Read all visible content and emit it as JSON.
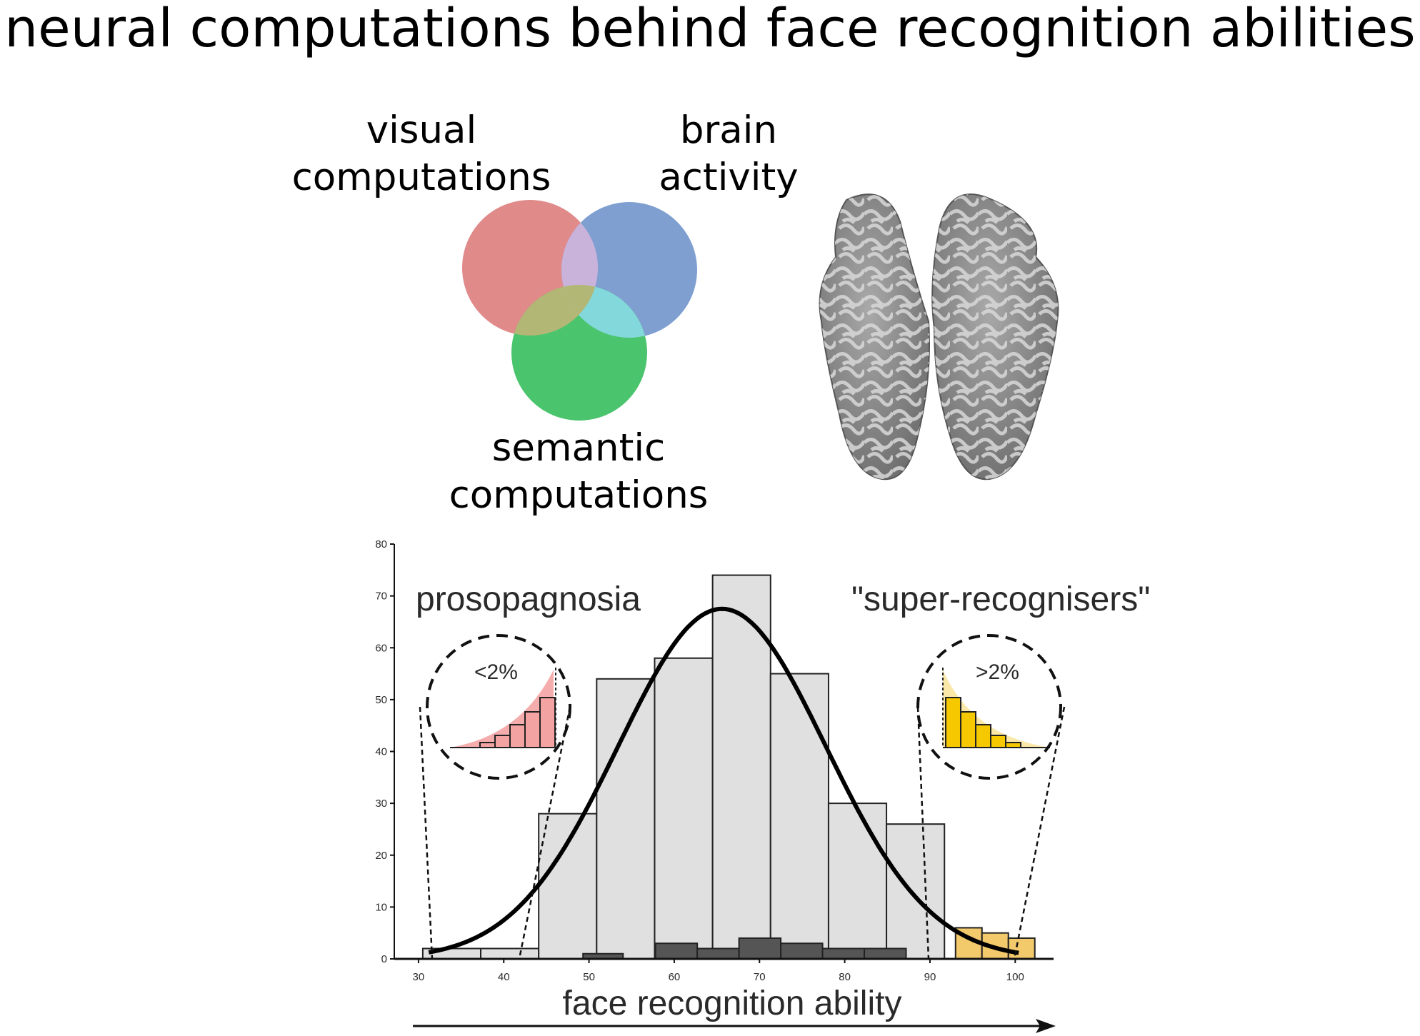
{
  "title": "neural computations behind face recognition abilities",
  "venn": {
    "labels": {
      "visual": [
        "visual",
        "computations"
      ],
      "brain": [
        "brain",
        "activity"
      ],
      "semantic": [
        "semantic",
        "computations"
      ]
    },
    "colors": {
      "visual": "#e08a8a",
      "brain": "#7f9fd1",
      "semantic": "#4bc46e",
      "visual_brain": "#c9b3db",
      "visual_semantic": "#b3b775",
      "brain_semantic": "#82d8da"
    }
  },
  "labels": {
    "prosopagnosia": "prosopagnosia",
    "super_recognisers": "\"super-recognisers\"",
    "low_tail": "<2%",
    "high_tail": ">2%"
  },
  "chart_data": {
    "type": "bar",
    "xlabel": "face recognition ability",
    "xlim": [
      28.5,
      104.5
    ],
    "ylim": [
      0,
      80
    ],
    "xticks": [
      30,
      40,
      50,
      60,
      70,
      80,
      90,
      100
    ],
    "yticks": [
      0,
      10,
      20,
      30,
      40,
      50,
      60,
      70,
      80
    ],
    "series": [
      {
        "bins": [
          {
            "x0": 30.5,
            "x1": 37.3,
            "value": 2
          },
          {
            "x0": 37.3,
            "x1": 44.1,
            "value": 2
          },
          {
            "x0": 44.1,
            "x1": 50.9,
            "value": 28
          },
          {
            "x0": 50.9,
            "x1": 57.7,
            "value": 54
          },
          {
            "x0": 57.7,
            "x1": 64.5,
            "value": 58
          },
          {
            "x0": 64.5,
            "x1": 71.3,
            "value": 74
          },
          {
            "x0": 71.3,
            "x1": 78.1,
            "value": 55
          },
          {
            "x0": 78.1,
            "x1": 84.9,
            "value": 30
          },
          {
            "x0": 84.9,
            "x1": 91.7,
            "value": 26
          }
        ],
        "color": "#e0e0e0"
      },
      {
        "bins": [
          {
            "x0": 49.3,
            "x1": 54.0,
            "value": 1
          },
          {
            "x0": 57.8,
            "x1": 62.7,
            "value": 3
          },
          {
            "x0": 62.7,
            "x1": 67.6,
            "value": 2
          },
          {
            "x0": 67.6,
            "x1": 72.5,
            "value": 4
          },
          {
            "x0": 72.5,
            "x1": 77.4,
            "value": 3
          },
          {
            "x0": 77.4,
            "x1": 82.3,
            "value": 2
          },
          {
            "x0": 82.3,
            "x1": 87.2,
            "value": 2
          }
        ],
        "color": "#555555"
      },
      {
        "bins": [
          {
            "x0": 93.0,
            "x1": 96.1,
            "value": 6
          },
          {
            "x0": 96.1,
            "x1": 99.2,
            "value": 5
          },
          {
            "x0": 99.2,
            "x1": 102.3,
            "value": 4
          }
        ],
        "color": "#f2c96b"
      }
    ],
    "curve": {
      "type": "normal",
      "mean": 65.6,
      "sd": 12.2,
      "peak": 67.5
    }
  }
}
